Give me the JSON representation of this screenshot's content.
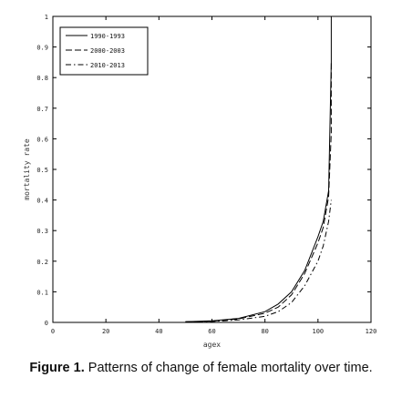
{
  "chart_data": {
    "type": "line",
    "xlabel": "agex",
    "ylabel": "mortality rate",
    "xlim": [
      0,
      120
    ],
    "ylim": [
      0,
      1
    ],
    "x_ticks": [
      0,
      20,
      40,
      60,
      80,
      100,
      120
    ],
    "y_ticks": [
      0,
      0.1,
      0.2,
      0.3,
      0.4,
      0.5,
      0.6,
      0.7,
      0.8,
      0.9,
      1
    ],
    "y_tick_labels": [
      "0",
      "0.1",
      "0.2",
      "0.3",
      "0.4",
      "0.5",
      "0.6",
      "0.7",
      "0.8",
      "0.9",
      "1"
    ],
    "grid": false,
    "legend_position": "top-left",
    "series": [
      {
        "name": "1990-1993",
        "dash": "solid",
        "x": [
          50,
          60,
          70,
          80,
          85,
          90,
          95,
          100,
          102,
          104,
          105,
          105
        ],
        "y": [
          0.002,
          0.005,
          0.013,
          0.035,
          0.06,
          0.1,
          0.17,
          0.28,
          0.33,
          0.43,
          0.85,
          1.0
        ]
      },
      {
        "name": "2000-2003",
        "dash": "dashed",
        "x": [
          50,
          60,
          70,
          80,
          85,
          90,
          95,
          100,
          102,
          104,
          105,
          105
        ],
        "y": [
          0.002,
          0.004,
          0.011,
          0.03,
          0.05,
          0.09,
          0.16,
          0.26,
          0.31,
          0.41,
          0.62,
          0.85
        ]
      },
      {
        "name": "2010-2013",
        "dash": "dashdot",
        "x": [
          50,
          60,
          70,
          80,
          85,
          90,
          95,
          100,
          102,
          104,
          105
        ],
        "y": [
          0.001,
          0.003,
          0.008,
          0.02,
          0.035,
          0.065,
          0.12,
          0.2,
          0.25,
          0.33,
          0.4
        ]
      }
    ]
  },
  "caption": {
    "label": "Figure 1.",
    "text": "Patterns of change of female mortality over time."
  }
}
